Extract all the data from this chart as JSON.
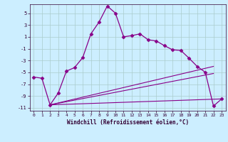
{
  "xlabel": "Windchill (Refroidissement éolien,°C)",
  "bg_color": "#cceeff",
  "line_color": "#880088",
  "grid_color": "#aacccc",
  "xlim": [
    -0.5,
    23.5
  ],
  "ylim": [
    -11.5,
    6.5
  ],
  "yticks": [
    5,
    3,
    1,
    -1,
    -3,
    -5,
    -7,
    -9,
    -11
  ],
  "xticks": [
    0,
    1,
    2,
    3,
    4,
    5,
    6,
    7,
    8,
    9,
    10,
    11,
    12,
    13,
    14,
    15,
    16,
    17,
    18,
    19,
    20,
    21,
    22,
    23
  ],
  "series1": {
    "x": [
      0,
      1,
      2,
      3,
      4,
      5,
      6,
      7,
      8,
      9,
      10,
      11,
      12,
      13,
      14,
      15,
      16,
      17,
      18,
      19,
      20,
      21,
      22,
      23
    ],
    "y": [
      -5.8,
      -6.0,
      -10.5,
      -8.5,
      -4.8,
      -4.2,
      -2.5,
      1.5,
      3.5,
      6.2,
      5.0,
      1.0,
      1.2,
      1.5,
      0.5,
      0.3,
      -0.5,
      -1.2,
      -1.3,
      -2.6,
      -4.0,
      -5.0,
      -10.7,
      -9.5
    ]
  },
  "series2": {
    "x": [
      2,
      22
    ],
    "y": [
      -10.5,
      -4.0
    ]
  },
  "series3": {
    "x": [
      2,
      22
    ],
    "y": [
      -10.5,
      -5.2
    ]
  },
  "series4": {
    "x": [
      2,
      23
    ],
    "y": [
      -10.5,
      -9.5
    ]
  }
}
